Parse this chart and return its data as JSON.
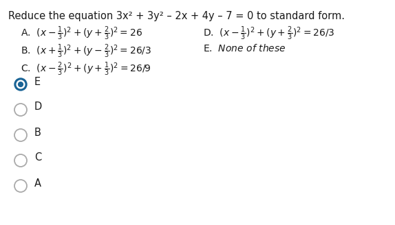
{
  "title": "Reduce the equation 3x² + 3y² – 2x + 4y – 7 = 0 to standard form.",
  "bg_color": "#ffffff",
  "text_color": "#1a1a1a",
  "radio_color": "#1a6496",
  "radio_unselected": "#aaaaaa",
  "radio_labels": [
    "E",
    "D",
    "B",
    "C",
    "A"
  ],
  "selected": "E",
  "title_fontsize": 10.5,
  "option_fontsize": 10.0,
  "radio_fontsize": 10.5
}
